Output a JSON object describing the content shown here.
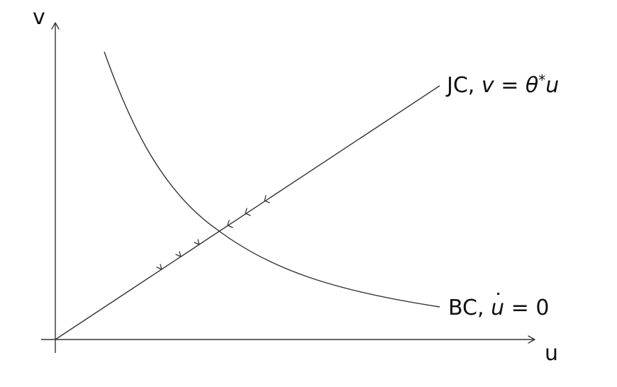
{
  "axes": {
    "x_label": "u",
    "y_label": "v"
  },
  "jc_curve": {
    "name": "JC",
    "equation_lhs": "v",
    "equation_rel": "=",
    "equation_coef": "θ",
    "equation_sup": "*",
    "equation_var": "u"
  },
  "bc_curve": {
    "name": "BC",
    "equation_lhs": "u",
    "equation_rel": "=",
    "equation_rhs": "0"
  },
  "colors": {
    "line": "#333333",
    "text": "#111111"
  }
}
